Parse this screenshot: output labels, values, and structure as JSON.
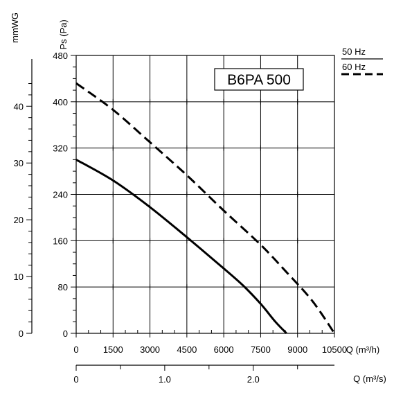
{
  "chart_data": {
    "type": "line",
    "model_label": "B6PA 500",
    "y_left_label": "Ps (Pa)",
    "y_far_label": "mmWG",
    "x_label": "Q (m³/h)",
    "x2_label": "Q (m³/s)",
    "x_ticks": [
      "0",
      "1500",
      "3000",
      "4500",
      "6000",
      "7500",
      "9000",
      "10500"
    ],
    "x_range": [
      0,
      10500
    ],
    "y_ticks": [
      "0",
      "80",
      "160",
      "240",
      "320",
      "400",
      "480"
    ],
    "y_range": [
      0,
      480
    ],
    "mmwg_ticks": [
      "0",
      "10",
      "20",
      "30",
      "40"
    ],
    "x2_ticks": [
      "0",
      "1.0",
      "2.0"
    ],
    "grid": true,
    "legend_position": "top-right",
    "series": [
      {
        "name": "50 Hz",
        "style": "solid",
        "x": [
          0,
          1500,
          3000,
          4500,
          6000,
          6800,
          7500,
          8100,
          8550
        ],
        "y": [
          300,
          264,
          218,
          166,
          112,
          82,
          51,
          20,
          0
        ]
      },
      {
        "name": "60 Hz",
        "style": "dashed",
        "x": [
          0,
          1500,
          3000,
          4500,
          6000,
          7500,
          8500,
          9600,
          10500
        ],
        "y": [
          432,
          386,
          330,
          273,
          212,
          153,
          108,
          56,
          0
        ]
      }
    ]
  }
}
